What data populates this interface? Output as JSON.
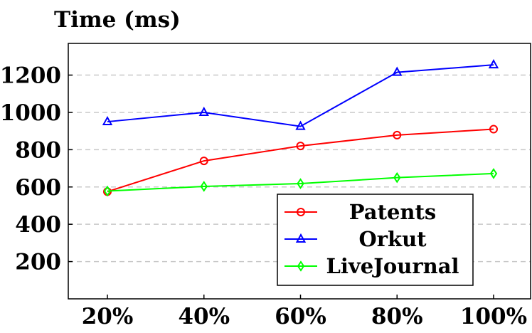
{
  "chart_data": {
    "type": "line",
    "title": "Time (ms)",
    "xlabel": "",
    "ylabel": "",
    "categories": [
      "20%",
      "40%",
      "60%",
      "80%",
      "100%"
    ],
    "y_ticks": [
      "200",
      "400",
      "600",
      "800",
      "1000",
      "1200"
    ],
    "ylim": [
      0,
      1370
    ],
    "grid": "horizontal dashed",
    "legend_position": "bottom-right",
    "series": [
      {
        "name": "Patents",
        "color": "#ff0000",
        "marker": "circle",
        "values": [
          575,
          740,
          820,
          878,
          910
        ]
      },
      {
        "name": "Orkut",
        "color": "#0000ff",
        "marker": "triangle",
        "values": [
          950,
          1000,
          925,
          1215,
          1255
        ]
      },
      {
        "name": "LiveJournal",
        "color": "#00ff00",
        "marker": "diamond",
        "values": [
          578,
          603,
          618,
          650,
          672
        ]
      }
    ]
  }
}
